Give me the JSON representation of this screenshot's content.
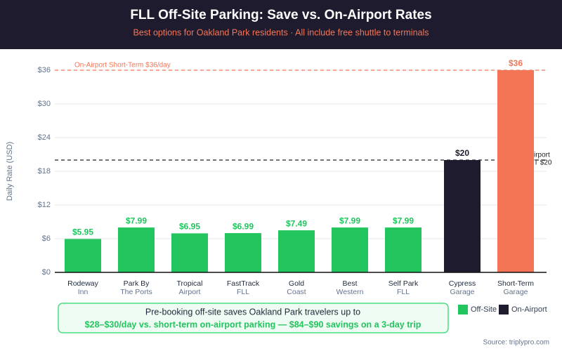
{
  "chart_data": {
    "type": "bar",
    "title": "FLL Off-Site Parking: Save vs. On-Airport Rates",
    "subtitle": "Best options for Oakland Park residents · All include free shuttle to terminals",
    "y_label": "Daily Rate (USD)",
    "categories": [
      [
        "Rodeway",
        "Inn"
      ],
      [
        "Park By",
        "The Ports"
      ],
      [
        "Tropical",
        "Airport"
      ],
      [
        "FastTrack",
        "FLL"
      ],
      [
        "Gold",
        "Coast"
      ],
      [
        "Best",
        "Western"
      ],
      [
        "Self Park",
        "FLL"
      ],
      [
        "Cypress",
        "Garage"
      ],
      [
        "Short-Term",
        "Garage"
      ]
    ],
    "values": [
      5.95,
      7.99,
      6.95,
      6.99,
      7.49,
      7.99,
      7.99,
      20,
      36
    ],
    "value_labels": [
      "$5.95",
      "$7.99",
      "$6.95",
      "$6.99",
      "$7.49",
      "$7.99",
      "$7.99",
      "$20",
      "$36"
    ],
    "colors": [
      "#22c55e",
      "#22c55e",
      "#22c55e",
      "#22c55e",
      "#22c55e",
      "#22c55e",
      "#22c55e",
      "#1e1b2e",
      "#f47556"
    ],
    "ylim": [
      0,
      36
    ],
    "yticks": [
      {
        "value": 0,
        "label": "$0"
      },
      {
        "value": 6,
        "label": "$6"
      },
      {
        "value": 12,
        "label": "$12"
      },
      {
        "value": 18,
        "label": "$18"
      },
      {
        "value": 24,
        "label": "$24"
      },
      {
        "value": 30,
        "label": "$30"
      },
      {
        "value": 36,
        "label": "$36"
      }
    ],
    "grid": true,
    "reference_lines": [
      {
        "value": 36,
        "label": [
          "On-Airport Short-Term $36/day"
        ],
        "color": "#f47556"
      },
      {
        "value": 20,
        "label": [
          "irport",
          "T $20"
        ],
        "color": "#222222"
      }
    ],
    "legend": [
      {
        "name": "Off-Site",
        "color": "#22c55e"
      },
      {
        "name": "On-Airport",
        "color": "#1e1b2e"
      }
    ],
    "callout": [
      "Pre-booking off-site saves Oakland Park travelers up to",
      "$28–$30/day vs. short-term on-airport parking — $84–$90 savings on a 3-day trip"
    ],
    "source": "Source: triplypro.com"
  }
}
